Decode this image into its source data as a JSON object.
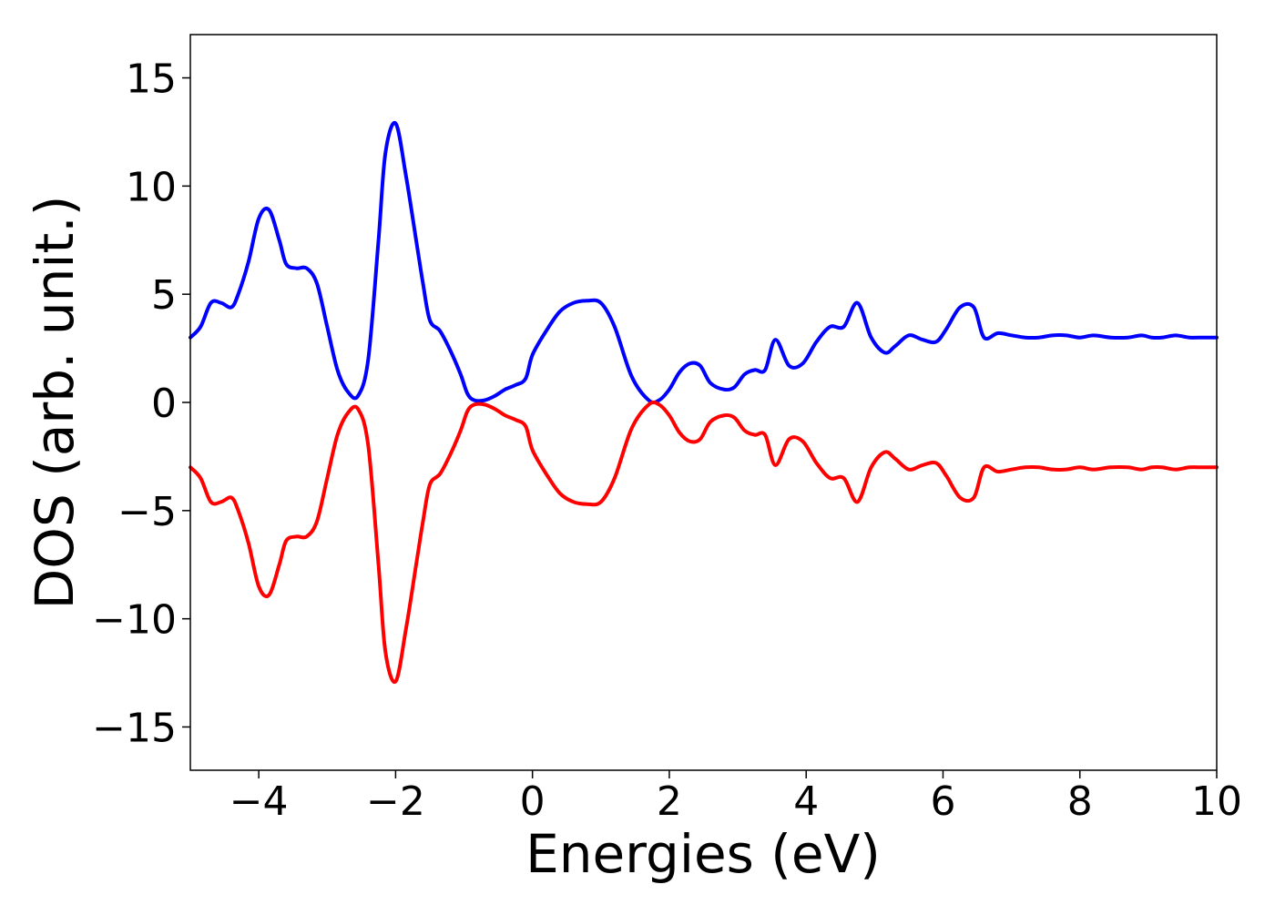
{
  "chart_data": {
    "type": "line",
    "title": "",
    "xlabel": "Energies (eV)",
    "ylabel": "DOS (arb. unit.)",
    "xlim": [
      -5,
      10
    ],
    "ylim": [
      -17,
      17
    ],
    "xticks": [
      -4,
      -2,
      0,
      2,
      4,
      6,
      8,
      10
    ],
    "yticks": [
      -15,
      -10,
      -5,
      0,
      5,
      10,
      15
    ],
    "xtick_labels": [
      "−4",
      "−2",
      "0",
      "2",
      "4",
      "6",
      "8",
      "10"
    ],
    "ytick_labels": [
      "−15",
      "−10",
      "−5",
      "0",
      "5",
      "10",
      "15"
    ],
    "grid": false,
    "legend": "none",
    "colors": {
      "spin_up": "#0000ff",
      "spin_down": "#ff0000"
    },
    "x": [
      -5.0,
      -4.85,
      -4.7,
      -4.55,
      -4.4,
      -4.3,
      -4.15,
      -4.0,
      -3.85,
      -3.7,
      -3.6,
      -3.45,
      -3.3,
      -3.15,
      -3.0,
      -2.85,
      -2.7,
      -2.55,
      -2.4,
      -2.25,
      -2.15,
      -2.0,
      -1.85,
      -1.7,
      -1.6,
      -1.5,
      -1.35,
      -1.2,
      -1.05,
      -0.95,
      -0.85,
      -0.7,
      -0.55,
      -0.4,
      -0.25,
      -0.1,
      0.0,
      0.2,
      0.4,
      0.6,
      0.8,
      1.0,
      1.2,
      1.45,
      1.7,
      1.85,
      2.0,
      2.15,
      2.3,
      2.45,
      2.6,
      2.8,
      2.95,
      3.1,
      3.25,
      3.4,
      3.55,
      3.75,
      3.95,
      4.15,
      4.35,
      4.55,
      4.75,
      4.95,
      5.15,
      5.3,
      5.5,
      5.7,
      5.9,
      6.05,
      6.25,
      6.45,
      6.6,
      6.8,
      7.0,
      7.2,
      7.4,
      7.6,
      7.8,
      8.0,
      8.2,
      8.45,
      8.7,
      8.9,
      9.05,
      9.2,
      9.4,
      9.6,
      9.8,
      10.0
    ],
    "series": [
      {
        "values": [
          3.0,
          3.5,
          4.6,
          4.6,
          4.4,
          5.0,
          6.5,
          8.5,
          8.9,
          7.5,
          6.4,
          6.2,
          6.2,
          5.5,
          3.5,
          1.5,
          0.5,
          0.3,
          2.0,
          7.5,
          11.5,
          12.9,
          10.5,
          7.5,
          5.5,
          3.8,
          3.3,
          2.4,
          1.3,
          0.4,
          0.1,
          0.1,
          0.3,
          0.6,
          0.8,
          1.1,
          2.2,
          3.3,
          4.2,
          4.6,
          4.7,
          4.6,
          3.5,
          1.2,
          0.1,
          0.1,
          0.6,
          1.4,
          1.8,
          1.7,
          0.9,
          0.6,
          0.7,
          1.3,
          1.5,
          1.5,
          2.9,
          1.7,
          1.8,
          2.8,
          3.5,
          3.5,
          4.6,
          3.0,
          2.3,
          2.6,
          3.1,
          2.9,
          2.8,
          3.4,
          4.4,
          4.4,
          3.0,
          3.2,
          3.1,
          3.0,
          3.0,
          3.1,
          3.1,
          3.0,
          3.1,
          3.0,
          3.0,
          3.1,
          3.0,
          3.0,
          3.1,
          3.0,
          3.0,
          3.0
        ]
      },
      {
        "values": [
          -3.0,
          -3.5,
          -4.6,
          -4.6,
          -4.4,
          -5.0,
          -6.5,
          -8.5,
          -8.9,
          -7.5,
          -6.4,
          -6.2,
          -6.2,
          -5.5,
          -3.5,
          -1.5,
          -0.5,
          -0.3,
          -2.0,
          -7.5,
          -11.5,
          -12.9,
          -10.5,
          -7.5,
          -5.5,
          -3.8,
          -3.3,
          -2.4,
          -1.3,
          -0.4,
          -0.1,
          -0.1,
          -0.3,
          -0.6,
          -0.8,
          -1.1,
          -2.2,
          -3.3,
          -4.2,
          -4.6,
          -4.7,
          -4.6,
          -3.5,
          -1.2,
          -0.1,
          -0.1,
          -0.6,
          -1.4,
          -1.8,
          -1.7,
          -0.9,
          -0.6,
          -0.7,
          -1.3,
          -1.5,
          -1.5,
          -2.9,
          -1.7,
          -1.8,
          -2.8,
          -3.5,
          -3.5,
          -4.6,
          -3.0,
          -2.3,
          -2.6,
          -3.1,
          -2.9,
          -2.8,
          -3.4,
          -4.4,
          -4.4,
          -3.0,
          -3.2,
          -3.1,
          -3.0,
          -3.0,
          -3.1,
          -3.1,
          -3.0,
          -3.1,
          -3.0,
          -3.0,
          -3.1,
          -3.0,
          -3.0,
          -3.1,
          -3.0,
          -3.0,
          -3.0
        ]
      }
    ]
  }
}
